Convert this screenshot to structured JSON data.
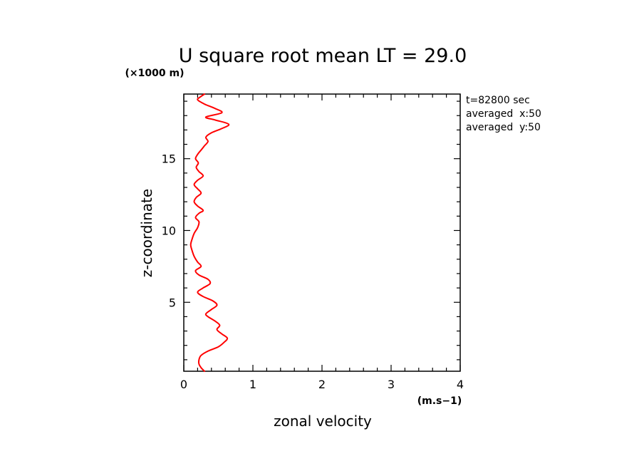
{
  "chart_data": {
    "type": "line",
    "title": "U square root mean LT = 29.0",
    "xlabel": "zonal velocity",
    "ylabel": "z-coordinate",
    "x_unit": "(m.s−1)",
    "y_unit": "(×1000 m)",
    "xlim": [
      0,
      4
    ],
    "ylim": [
      0.2,
      19.5
    ],
    "x_ticks": [
      "0",
      "1",
      "2",
      "3",
      "4"
    ],
    "y_ticks": [
      "5",
      "10",
      "15"
    ],
    "annotations": [
      "t=82800 sec",
      "averaged  x:50",
      "averaged  y:50"
    ],
    "line_color": "#ff0000",
    "series": [
      {
        "points": [
          [
            0.3,
            0.2
          ],
          [
            0.25,
            0.45
          ],
          [
            0.22,
            0.7
          ],
          [
            0.22,
            1.0
          ],
          [
            0.25,
            1.3
          ],
          [
            0.35,
            1.6
          ],
          [
            0.5,
            1.9
          ],
          [
            0.58,
            2.2
          ],
          [
            0.63,
            2.5
          ],
          [
            0.55,
            2.8
          ],
          [
            0.48,
            3.1
          ],
          [
            0.52,
            3.4
          ],
          [
            0.45,
            3.7
          ],
          [
            0.35,
            4.0
          ],
          [
            0.32,
            4.2
          ],
          [
            0.4,
            4.5
          ],
          [
            0.48,
            4.8
          ],
          [
            0.42,
            5.1
          ],
          [
            0.28,
            5.4
          ],
          [
            0.2,
            5.7
          ],
          [
            0.28,
            6.0
          ],
          [
            0.38,
            6.3
          ],
          [
            0.35,
            6.6
          ],
          [
            0.22,
            6.9
          ],
          [
            0.17,
            7.2
          ],
          [
            0.25,
            7.5
          ],
          [
            0.2,
            7.8
          ],
          [
            0.15,
            8.2
          ],
          [
            0.12,
            8.6
          ],
          [
            0.1,
            9.0
          ],
          [
            0.12,
            9.4
          ],
          [
            0.15,
            9.8
          ],
          [
            0.2,
            10.2
          ],
          [
            0.22,
            10.6
          ],
          [
            0.17,
            10.9
          ],
          [
            0.22,
            11.2
          ],
          [
            0.28,
            11.4
          ],
          [
            0.2,
            11.7
          ],
          [
            0.15,
            12.0
          ],
          [
            0.18,
            12.3
          ],
          [
            0.25,
            12.6
          ],
          [
            0.2,
            12.9
          ],
          [
            0.15,
            13.2
          ],
          [
            0.2,
            13.5
          ],
          [
            0.28,
            13.8
          ],
          [
            0.22,
            14.1
          ],
          [
            0.18,
            14.4
          ],
          [
            0.21,
            14.7
          ],
          [
            0.17,
            15.0
          ],
          [
            0.2,
            15.3
          ],
          [
            0.25,
            15.6
          ],
          [
            0.3,
            15.9
          ],
          [
            0.35,
            16.2
          ],
          [
            0.32,
            16.5
          ],
          [
            0.4,
            16.8
          ],
          [
            0.55,
            17.1
          ],
          [
            0.65,
            17.4
          ],
          [
            0.45,
            17.7
          ],
          [
            0.32,
            17.9
          ],
          [
            0.55,
            18.2
          ],
          [
            0.45,
            18.5
          ],
          [
            0.3,
            18.8
          ],
          [
            0.2,
            19.1
          ],
          [
            0.24,
            19.3
          ],
          [
            0.3,
            19.5
          ]
        ]
      }
    ]
  }
}
